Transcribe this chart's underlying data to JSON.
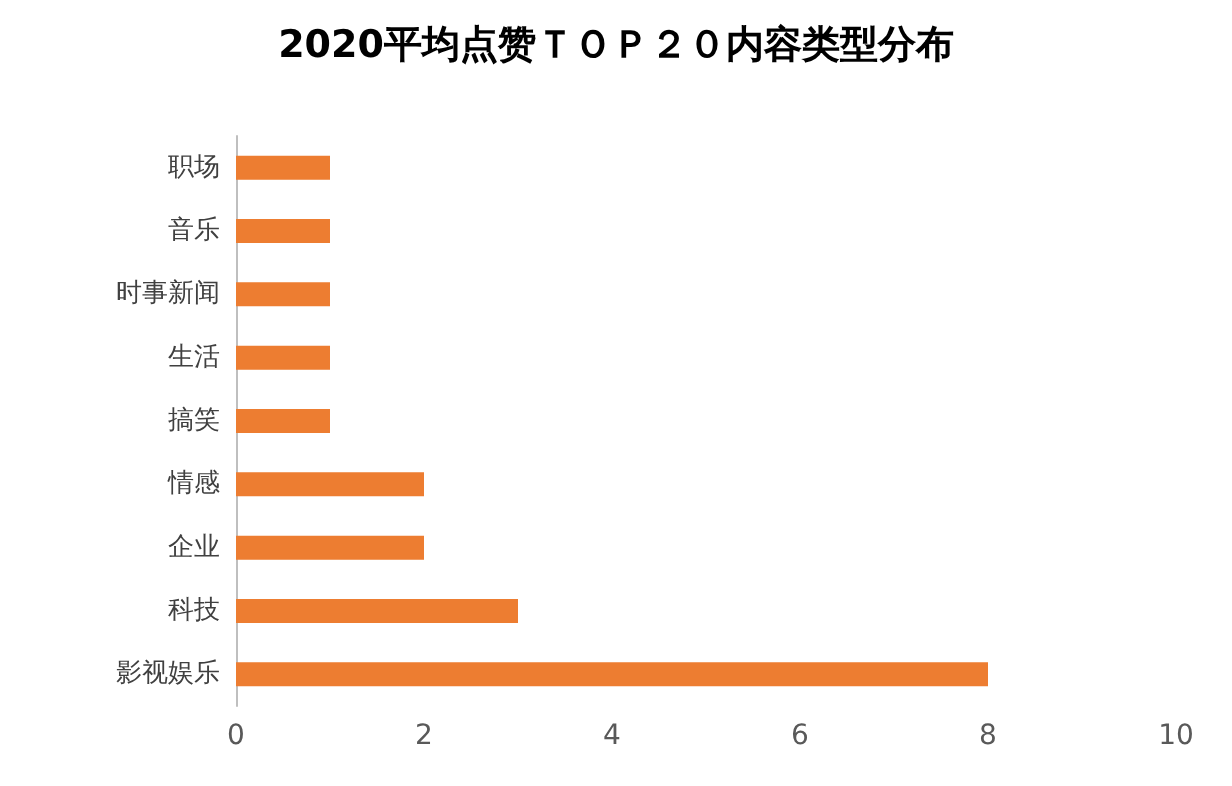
{
  "chart_data": {
    "type": "bar",
    "orientation": "horizontal",
    "title": "2020平均点赞ＴＯＰ２０内容类型分布",
    "categories": [
      "职场",
      "音乐",
      "时事新闻",
      "生活",
      "搞笑",
      "情感",
      "企业",
      "科技",
      "影视娱乐"
    ],
    "values": [
      1,
      1,
      1,
      1,
      1,
      2,
      2,
      3,
      8
    ],
    "color": "#ed7d31",
    "xlim": [
      0,
      10
    ],
    "xticks": [
      0,
      2,
      4,
      6,
      8,
      10
    ]
  }
}
